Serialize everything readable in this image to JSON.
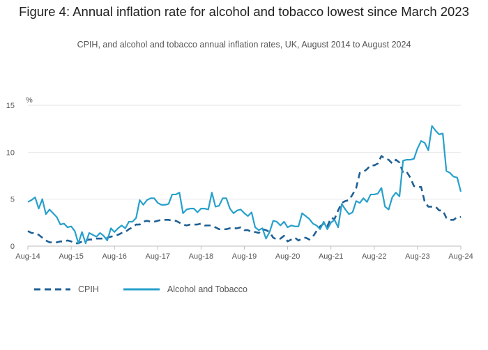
{
  "title": "Figure 4: Annual inflation rate for alcohol and tobacco lowest since March 2023",
  "subtitle": "CPIH, and alcohol and tobacco annual inflation rates, UK, August 2014 to August 2024",
  "colors": {
    "cpih": "#206095",
    "alcohol_tobacco": "#27a0cc",
    "grid": "#e6e6e6",
    "axis": "#bebebe",
    "text": "#555555"
  },
  "chart_data": {
    "type": "line",
    "title": "Figure 4: Annual inflation rate for alcohol and tobacco lowest since March 2023",
    "subtitle": "CPIH, and alcohol and tobacco annual inflation rates, UK, August 2014 to August 2024",
    "ylabel": "%",
    "xlabel": "",
    "ylim": [
      0,
      15
    ],
    "xlim": [
      "2014-08",
      "2024-08"
    ],
    "yticks": [
      0,
      5,
      10,
      15
    ],
    "xticks": [
      "Aug-14",
      "Aug-15",
      "Aug-16",
      "Aug-17",
      "Aug-18",
      "Aug-19",
      "Aug-20",
      "Aug-21",
      "Aug-22",
      "Aug-23",
      "Aug-24"
    ],
    "grid": true,
    "legend_position": "bottom-left",
    "series": [
      {
        "name": "CPIH",
        "style": "dashed",
        "color": "#206095",
        "points": [
          [
            "2014-08",
            1.6
          ],
          [
            "2014-09",
            1.4
          ],
          [
            "2014-10",
            1.4
          ],
          [
            "2014-11",
            1.2
          ],
          [
            "2014-12",
            0.9
          ],
          [
            "2015-01",
            0.6
          ],
          [
            "2015-02",
            0.4
          ],
          [
            "2015-03",
            0.4
          ],
          [
            "2015-04",
            0.4
          ],
          [
            "2015-05",
            0.5
          ],
          [
            "2015-06",
            0.5
          ],
          [
            "2015-07",
            0.6
          ],
          [
            "2015-08",
            0.5
          ],
          [
            "2015-09",
            0.3
          ],
          [
            "2015-10",
            0.3
          ],
          [
            "2015-11",
            0.5
          ],
          [
            "2015-12",
            0.6
          ],
          [
            "2016-01",
            0.7
          ],
          [
            "2016-02",
            0.7
          ],
          [
            "2016-03",
            0.8
          ],
          [
            "2016-04",
            0.8
          ],
          [
            "2016-05",
            0.8
          ],
          [
            "2016-06",
            0.9
          ],
          [
            "2016-07",
            1.0
          ],
          [
            "2016-08",
            1.1
          ],
          [
            "2016-09",
            1.2
          ],
          [
            "2016-10",
            1.4
          ],
          [
            "2016-11",
            1.5
          ],
          [
            "2016-12",
            1.8
          ],
          [
            "2017-01",
            2.0
          ],
          [
            "2017-02",
            2.3
          ],
          [
            "2017-03",
            2.3
          ],
          [
            "2017-04",
            2.6
          ],
          [
            "2017-05",
            2.7
          ],
          [
            "2017-06",
            2.6
          ],
          [
            "2017-07",
            2.6
          ],
          [
            "2017-08",
            2.7
          ],
          [
            "2017-09",
            2.8
          ],
          [
            "2017-10",
            2.8
          ],
          [
            "2017-11",
            2.8
          ],
          [
            "2017-12",
            2.7
          ],
          [
            "2018-01",
            2.7
          ],
          [
            "2018-02",
            2.5
          ],
          [
            "2018-03",
            2.3
          ],
          [
            "2018-04",
            2.2
          ],
          [
            "2018-05",
            2.3
          ],
          [
            "2018-06",
            2.3
          ],
          [
            "2018-07",
            2.3
          ],
          [
            "2018-08",
            2.4
          ],
          [
            "2018-09",
            2.2
          ],
          [
            "2018-10",
            2.2
          ],
          [
            "2018-11",
            2.2
          ],
          [
            "2018-12",
            2.0
          ],
          [
            "2019-01",
            1.8
          ],
          [
            "2019-02",
            1.8
          ],
          [
            "2019-03",
            1.8
          ],
          [
            "2019-04",
            1.9
          ],
          [
            "2019-05",
            1.9
          ],
          [
            "2019-06",
            1.9
          ],
          [
            "2019-07",
            2.0
          ],
          [
            "2019-08",
            1.7
          ],
          [
            "2019-09",
            1.7
          ],
          [
            "2019-10",
            1.5
          ],
          [
            "2019-11",
            1.5
          ],
          [
            "2019-12",
            1.4
          ],
          [
            "2020-01",
            1.8
          ],
          [
            "2020-02",
            1.7
          ],
          [
            "2020-03",
            1.5
          ],
          [
            "2020-04",
            0.9
          ],
          [
            "2020-05",
            0.7
          ],
          [
            "2020-06",
            0.8
          ],
          [
            "2020-07",
            1.1
          ],
          [
            "2020-08",
            0.5
          ],
          [
            "2020-09",
            0.7
          ],
          [
            "2020-10",
            0.9
          ],
          [
            "2020-11",
            0.6
          ],
          [
            "2020-12",
            0.8
          ],
          [
            "2021-01",
            0.9
          ],
          [
            "2021-02",
            0.7
          ],
          [
            "2021-03",
            1.0
          ],
          [
            "2021-04",
            1.6
          ],
          [
            "2021-05",
            2.1
          ],
          [
            "2021-06",
            2.4
          ],
          [
            "2021-07",
            2.1
          ],
          [
            "2021-08",
            3.0
          ],
          [
            "2021-09",
            2.9
          ],
          [
            "2021-10",
            3.8
          ],
          [
            "2021-11",
            4.6
          ],
          [
            "2021-12",
            4.8
          ],
          [
            "2022-01",
            4.9
          ],
          [
            "2022-02",
            5.5
          ],
          [
            "2022-03",
            6.2
          ],
          [
            "2022-04",
            7.8
          ],
          [
            "2022-05",
            7.9
          ],
          [
            "2022-06",
            8.2
          ],
          [
            "2022-07",
            8.6
          ],
          [
            "2022-08",
            8.6
          ],
          [
            "2022-09",
            8.8
          ],
          [
            "2022-10",
            9.6
          ],
          [
            "2022-11",
            9.3
          ],
          [
            "2022-12",
            9.2
          ],
          [
            "2023-01",
            8.8
          ],
          [
            "2023-02",
            9.2
          ],
          [
            "2023-03",
            8.9
          ],
          [
            "2023-04",
            7.8
          ],
          [
            "2023-05",
            7.9
          ],
          [
            "2023-06",
            7.3
          ],
          [
            "2023-07",
            6.4
          ],
          [
            "2023-08",
            6.3
          ],
          [
            "2023-09",
            6.3
          ],
          [
            "2023-10",
            4.7
          ],
          [
            "2023-11",
            4.2
          ],
          [
            "2023-12",
            4.2
          ],
          [
            "2024-01",
            4.2
          ],
          [
            "2024-02",
            3.8
          ],
          [
            "2024-03",
            3.8
          ],
          [
            "2024-04",
            3.0
          ],
          [
            "2024-05",
            2.8
          ],
          [
            "2024-06",
            2.8
          ],
          [
            "2024-07",
            3.1
          ],
          [
            "2024-08",
            3.1
          ]
        ]
      },
      {
        "name": "Alcohol and Tobacco",
        "style": "solid",
        "color": "#27a0cc",
        "points": [
          [
            "2014-08",
            4.7
          ],
          [
            "2014-09",
            4.9
          ],
          [
            "2014-10",
            5.2
          ],
          [
            "2014-11",
            4.0
          ],
          [
            "2014-12",
            5.0
          ],
          [
            "2015-01",
            3.4
          ],
          [
            "2015-02",
            3.9
          ],
          [
            "2015-03",
            3.5
          ],
          [
            "2015-04",
            3.1
          ],
          [
            "2015-05",
            2.3
          ],
          [
            "2015-06",
            2.4
          ],
          [
            "2015-07",
            2.0
          ],
          [
            "2015-08",
            2.1
          ],
          [
            "2015-09",
            1.6
          ],
          [
            "2015-10",
            0.3
          ],
          [
            "2015-11",
            1.5
          ],
          [
            "2015-12",
            0.3
          ],
          [
            "2016-01",
            1.4
          ],
          [
            "2016-02",
            1.2
          ],
          [
            "2016-03",
            1.0
          ],
          [
            "2016-04",
            1.4
          ],
          [
            "2016-05",
            1.1
          ],
          [
            "2016-06",
            0.6
          ],
          [
            "2016-07",
            1.9
          ],
          [
            "2016-08",
            1.5
          ],
          [
            "2016-09",
            1.9
          ],
          [
            "2016-10",
            2.2
          ],
          [
            "2016-11",
            1.9
          ],
          [
            "2016-12",
            2.6
          ],
          [
            "2017-01",
            2.6
          ],
          [
            "2017-02",
            3.0
          ],
          [
            "2017-03",
            4.9
          ],
          [
            "2017-04",
            4.4
          ],
          [
            "2017-05",
            4.9
          ],
          [
            "2017-06",
            5.1
          ],
          [
            "2017-07",
            5.1
          ],
          [
            "2017-08",
            4.6
          ],
          [
            "2017-09",
            4.4
          ],
          [
            "2017-10",
            4.4
          ],
          [
            "2017-11",
            4.5
          ],
          [
            "2017-12",
            5.5
          ],
          [
            "2018-01",
            5.5
          ],
          [
            "2018-02",
            5.7
          ],
          [
            "2018-03",
            3.5
          ],
          [
            "2018-04",
            3.9
          ],
          [
            "2018-05",
            4.0
          ],
          [
            "2018-06",
            4.0
          ],
          [
            "2018-07",
            3.6
          ],
          [
            "2018-08",
            4.0
          ],
          [
            "2018-09",
            4.0
          ],
          [
            "2018-10",
            3.9
          ],
          [
            "2018-11",
            5.7
          ],
          [
            "2018-12",
            4.2
          ],
          [
            "2019-01",
            4.3
          ],
          [
            "2019-02",
            5.1
          ],
          [
            "2019-03",
            5.1
          ],
          [
            "2019-04",
            4.0
          ],
          [
            "2019-05",
            3.5
          ],
          [
            "2019-06",
            3.8
          ],
          [
            "2019-07",
            3.9
          ],
          [
            "2019-08",
            3.5
          ],
          [
            "2019-09",
            3.2
          ],
          [
            "2019-10",
            3.6
          ],
          [
            "2019-11",
            2.0
          ],
          [
            "2019-12",
            1.7
          ],
          [
            "2020-01",
            1.9
          ],
          [
            "2020-02",
            0.8
          ],
          [
            "2020-03",
            1.5
          ],
          [
            "2020-04",
            2.7
          ],
          [
            "2020-05",
            2.6
          ],
          [
            "2020-06",
            2.2
          ],
          [
            "2020-07",
            2.6
          ],
          [
            "2020-08",
            2.0
          ],
          [
            "2020-09",
            2.2
          ],
          [
            "2020-10",
            2.1
          ],
          [
            "2020-11",
            2.1
          ],
          [
            "2020-12",
            3.5
          ],
          [
            "2021-01",
            3.2
          ],
          [
            "2021-02",
            2.9
          ],
          [
            "2021-03",
            2.4
          ],
          [
            "2021-04",
            2.2
          ],
          [
            "2021-05",
            1.8
          ],
          [
            "2021-06",
            2.6
          ],
          [
            "2021-07",
            1.8
          ],
          [
            "2021-08",
            2.5
          ],
          [
            "2021-09",
            2.8
          ],
          [
            "2021-10",
            2.0
          ],
          [
            "2021-11",
            4.5
          ],
          [
            "2021-12",
            3.9
          ],
          [
            "2022-01",
            3.4
          ],
          [
            "2022-02",
            3.6
          ],
          [
            "2022-03",
            4.8
          ],
          [
            "2022-04",
            4.6
          ],
          [
            "2022-05",
            5.1
          ],
          [
            "2022-06",
            4.7
          ],
          [
            "2022-07",
            5.5
          ],
          [
            "2022-08",
            5.5
          ],
          [
            "2022-09",
            5.6
          ],
          [
            "2022-10",
            6.2
          ],
          [
            "2022-11",
            4.2
          ],
          [
            "2022-12",
            3.9
          ],
          [
            "2023-01",
            5.2
          ],
          [
            "2023-02",
            5.7
          ],
          [
            "2023-03",
            5.3
          ],
          [
            "2023-04",
            9.1
          ],
          [
            "2023-05",
            9.2
          ],
          [
            "2023-06",
            9.2
          ],
          [
            "2023-07",
            9.3
          ],
          [
            "2023-08",
            10.4
          ],
          [
            "2023-09",
            11.2
          ],
          [
            "2023-10",
            11.0
          ],
          [
            "2023-11",
            10.2
          ],
          [
            "2023-12",
            12.8
          ],
          [
            "2024-01",
            12.3
          ],
          [
            "2024-02",
            11.9
          ],
          [
            "2024-03",
            12.0
          ],
          [
            "2024-04",
            8.0
          ],
          [
            "2024-05",
            7.8
          ],
          [
            "2024-06",
            7.4
          ],
          [
            "2024-07",
            7.3
          ],
          [
            "2024-08",
            5.8
          ]
        ]
      }
    ]
  }
}
